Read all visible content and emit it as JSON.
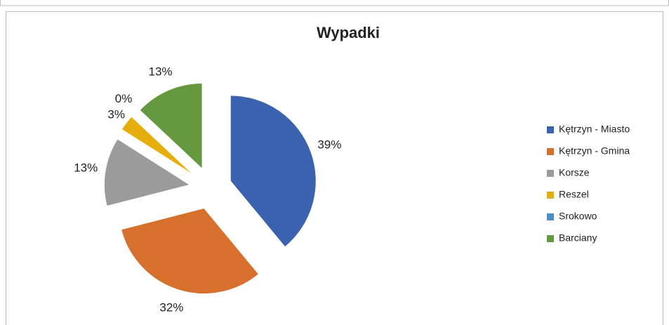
{
  "chart_data": {
    "type": "pie",
    "title": "Wypadki",
    "categories": [
      "Kętrzyn - Miasto",
      "Kętrzyn - Gmina",
      "Korsze",
      "Reszel",
      "Srokowo",
      "Barciany"
    ],
    "values": [
      39,
      32,
      13,
      3,
      0,
      13
    ],
    "value_labels": [
      "39%",
      "32%",
      "13%",
      "3%",
      "0%",
      "13%"
    ],
    "colors": [
      "#3b62ae",
      "#d6702c",
      "#9b9b9b",
      "#e6ae0c",
      "#4e8cc6",
      "#64993f"
    ],
    "exploded": true,
    "legend": "right"
  }
}
